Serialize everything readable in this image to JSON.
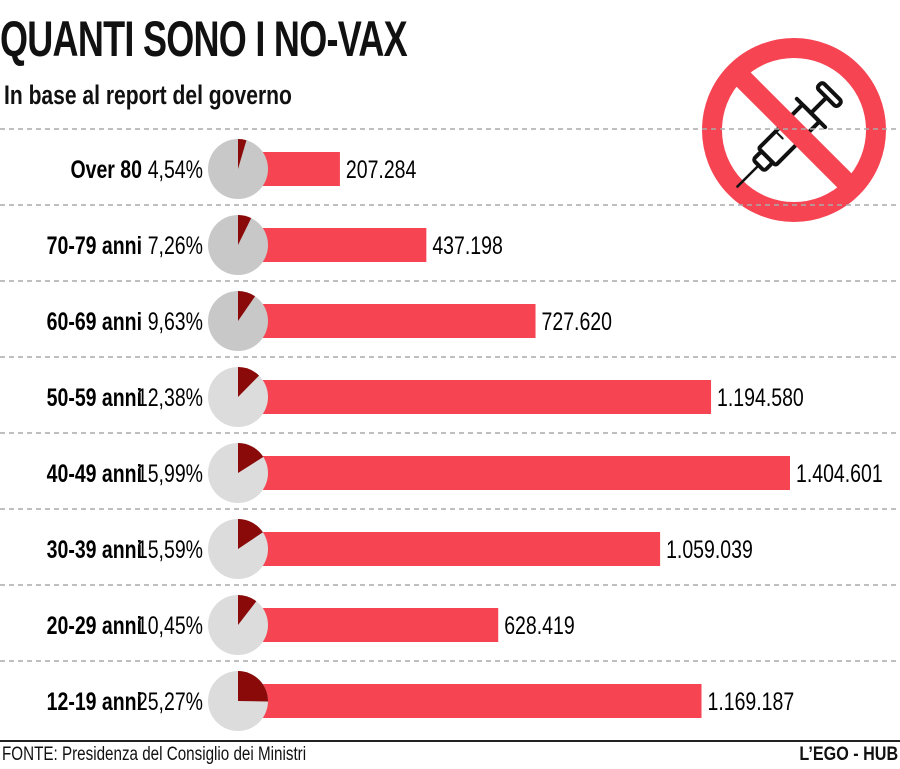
{
  "header": {
    "title": "QUANTI SONO I NO-VAX",
    "subtitle": "In base al report del governo"
  },
  "footer": {
    "source": "FONTE: Presidenza del Consiglio dei Ministri",
    "brand": "L’EGO - HUB"
  },
  "icon": "no-syringe-icon",
  "colors": {
    "bar": "#f64452",
    "slice": "#8a0a0a",
    "pie_dark": "#c8c8c8",
    "pie_light": "#dcdcdc",
    "prohibit": "#f64452"
  },
  "chart_data": {
    "type": "bar",
    "title": "QUANTI SONO I NO-VAX",
    "categories": [
      "Over 80",
      "70-79 anni",
      "60-69 anni",
      "50-59 anni",
      "40-49 anni",
      "30-39 anni",
      "20-29 anni",
      "12-19 anni"
    ],
    "percent_labels": [
      "4,54%",
      "7,26%",
      "9,63%",
      "12,38%",
      "15,99%",
      "15,59%",
      "10,45%",
      "25,27%"
    ],
    "percent_values": [
      4.54,
      7.26,
      9.63,
      12.38,
      15.99,
      15.59,
      10.45,
      25.27
    ],
    "value_labels": [
      "207.284",
      "437.198",
      "727.620",
      "1.194.580",
      "1.404.601",
      "1.059.039",
      "628.419",
      "1.169.187"
    ],
    "values": [
      207284,
      437198,
      727620,
      1194580,
      1404601,
      1059039,
      628419,
      1169187
    ],
    "xlabel": "",
    "ylabel": "",
    "xlim": [
      0,
      1404601
    ],
    "grid": false
  }
}
